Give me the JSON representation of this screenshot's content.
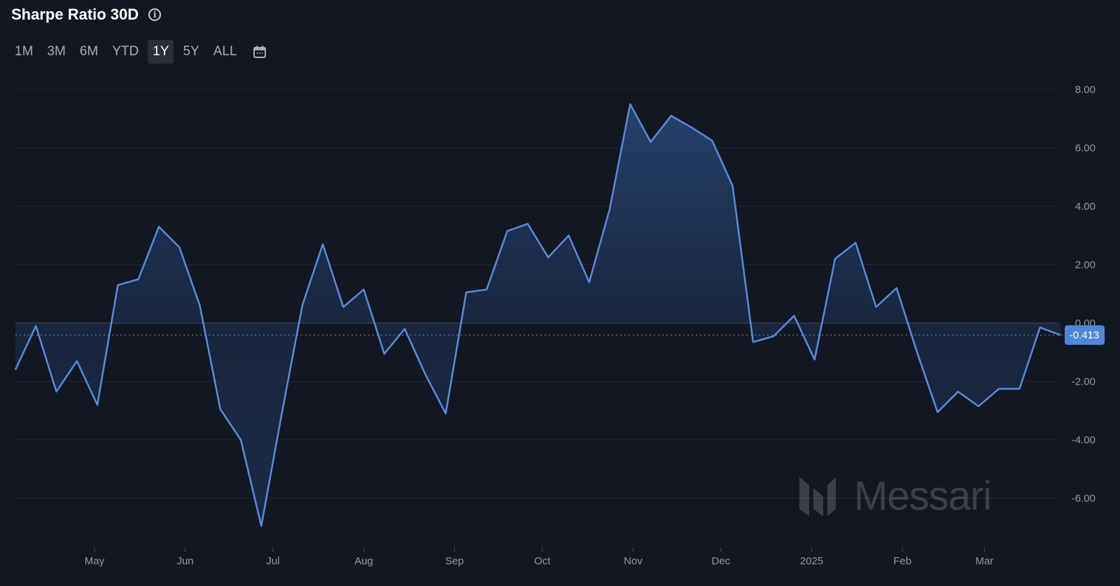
{
  "header": {
    "title": "Sharpe Ratio 30D"
  },
  "ranges": [
    "1M",
    "3M",
    "6M",
    "YTD",
    "1Y",
    "5Y",
    "ALL"
  ],
  "active_range": "1Y",
  "watermark": {
    "text": "Messari"
  },
  "colors": {
    "line": "#5b8bd6",
    "grid": "#232833",
    "zero": "#3a4050",
    "badge": "#4f86d8",
    "background": "#131722"
  },
  "chart_data": {
    "type": "area",
    "title": "Sharpe Ratio 30D",
    "xlabel": "",
    "ylabel": "",
    "ylim": [
      -6.8,
      8.0
    ],
    "y_ticks": [
      "8.00",
      "6.00",
      "4.00",
      "2.00",
      "0.00",
      "-2.00",
      "-4.00",
      "-6.00"
    ],
    "x_tick_labels": [
      "May",
      "Jun",
      "Jul",
      "Aug",
      "Sep",
      "Oct",
      "Nov",
      "Dec",
      "2025",
      "Feb",
      "Mar"
    ],
    "x_tick_dates": [
      "2024-05-01",
      "2024-06-01",
      "2024-07-01",
      "2024-08-01",
      "2024-09-01",
      "2024-10-01",
      "2024-11-01",
      "2024-12-01",
      "2025-01-01",
      "2025-02-01",
      "2025-03-01"
    ],
    "grid": true,
    "legend": "none",
    "current_value_label": "-0.413",
    "series": [
      {
        "x": [
          "2024-04-04",
          "2024-04-11",
          "2024-04-18",
          "2024-04-25",
          "2024-05-02",
          "2024-05-09",
          "2024-05-16",
          "2024-05-23",
          "2024-05-30",
          "2024-06-06",
          "2024-06-13",
          "2024-06-20",
          "2024-06-27",
          "2024-07-04",
          "2024-07-11",
          "2024-07-18",
          "2024-07-25",
          "2024-08-01",
          "2024-08-08",
          "2024-08-15",
          "2024-08-22",
          "2024-08-29",
          "2024-09-05",
          "2024-09-12",
          "2024-09-19",
          "2024-09-26",
          "2024-10-03",
          "2024-10-10",
          "2024-10-17",
          "2024-10-24",
          "2024-10-31",
          "2024-11-07",
          "2024-11-14",
          "2024-11-21",
          "2024-11-28",
          "2024-12-05",
          "2024-12-12",
          "2024-12-19",
          "2024-12-26",
          "2025-01-02",
          "2025-01-09",
          "2025-01-16",
          "2025-01-23",
          "2025-01-30",
          "2025-02-06",
          "2025-02-13",
          "2025-02-20",
          "2025-02-27",
          "2025-03-06",
          "2025-03-13",
          "2025-03-20",
          "2025-03-27"
        ],
        "values": [
          -1.6,
          -0.1,
          -2.35,
          -1.3,
          -2.8,
          1.3,
          1.5,
          3.3,
          2.6,
          0.6,
          -2.95,
          -4.0,
          -6.95,
          -3.1,
          0.6,
          2.7,
          0.55,
          1.15,
          -1.05,
          -0.2,
          -1.75,
          -3.1,
          1.05,
          1.15,
          3.15,
          3.4,
          2.25,
          3.0,
          1.4,
          3.9,
          7.5,
          6.2,
          7.1,
          6.7,
          6.25,
          4.7,
          -0.65,
          -0.45,
          0.25,
          -1.25,
          2.2,
          2.75,
          0.55,
          1.2,
          -1.0,
          -3.05,
          -2.35,
          -2.85,
          -2.25,
          -2.25,
          -0.15,
          -0.41
        ]
      }
    ]
  }
}
